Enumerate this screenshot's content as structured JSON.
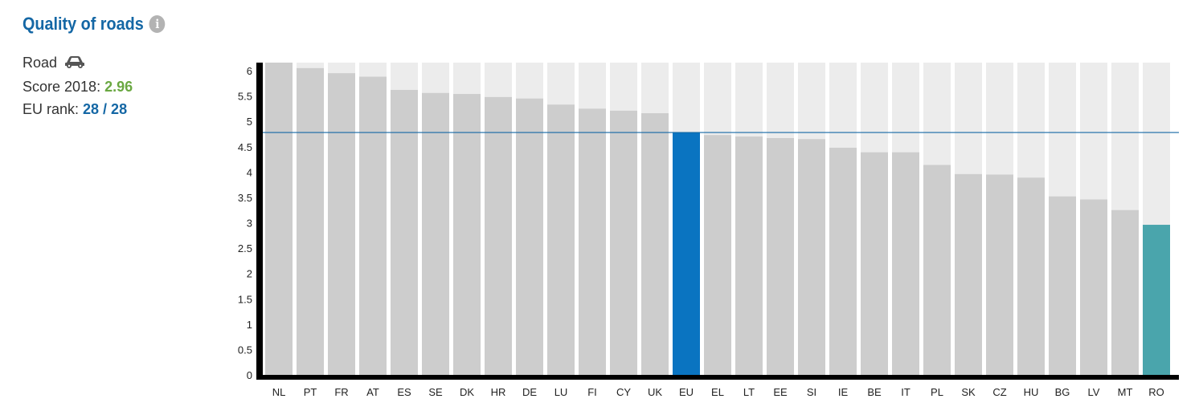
{
  "header": {
    "title": "Quality of roads",
    "info_icon": "info-icon"
  },
  "side": {
    "mode_label": "Road",
    "mode_icon": "car-icon",
    "score_label": "Score 2018: ",
    "score_value": "2.96",
    "rank_label": "EU rank: ",
    "rank_value": "28 / 28"
  },
  "colors": {
    "title": "#1467a5",
    "bar_default": "#cdcdcd",
    "bar_background": "#ececec",
    "bar_eu": "#0a74c1",
    "bar_selected": "#4aa5ac",
    "eu_line": "#1467a5",
    "score_value": "#6aa842",
    "rank_value": "#1467a5"
  },
  "chart_data": {
    "type": "bar",
    "categories": [
      "NL",
      "PT",
      "FR",
      "AT",
      "ES",
      "SE",
      "DK",
      "HR",
      "DE",
      "LU",
      "FI",
      "CY",
      "UK",
      "EU",
      "EL",
      "LT",
      "EE",
      "SI",
      "IE",
      "BE",
      "IT",
      "PL",
      "SK",
      "CZ",
      "HU",
      "BG",
      "LV",
      "MT",
      "RO"
    ],
    "values": [
      6.18,
      6.05,
      5.95,
      5.88,
      5.62,
      5.56,
      5.54,
      5.48,
      5.45,
      5.33,
      5.25,
      5.21,
      5.16,
      4.78,
      4.73,
      4.7,
      4.67,
      4.65,
      4.48,
      4.39,
      4.39,
      4.14,
      3.96,
      3.95,
      3.89,
      3.52,
      3.46,
      3.25,
      2.96
    ],
    "eu_average": 4.78,
    "highlight_eu": "EU",
    "highlight_selected": "RO",
    "ylim": [
      0,
      6.2
    ],
    "yticks": [
      "0",
      "0.5",
      "1",
      "1.5",
      "2",
      "2.5",
      "3",
      "3.5",
      "4",
      "4.5",
      "5",
      "5.5",
      "6"
    ],
    "grid": false,
    "xlabel": "",
    "ylabel": ""
  }
}
